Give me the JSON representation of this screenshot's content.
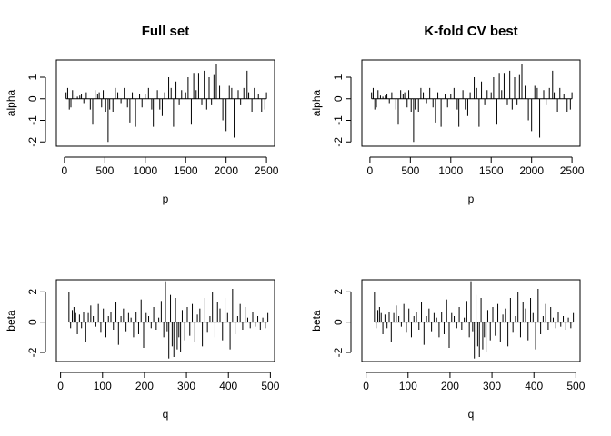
{
  "chart_data": [
    {
      "type": "bar",
      "title": "Full set",
      "xlabel": "p",
      "ylabel": "alpha",
      "xlim": [
        -100,
        2600
      ],
      "ylim": [
        -2.2,
        1.8
      ],
      "xticks": [
        0,
        500,
        1000,
        1500,
        2000,
        2500
      ],
      "yticks": [
        -2,
        -1,
        0,
        1
      ],
      "x": [
        20,
        40,
        60,
        80,
        100,
        130,
        160,
        190,
        210,
        240,
        270,
        320,
        350,
        380,
        410,
        430,
        460,
        480,
        510,
        540,
        560,
        600,
        630,
        660,
        700,
        740,
        780,
        810,
        840,
        880,
        930,
        960,
        1000,
        1040,
        1080,
        1100,
        1150,
        1180,
        1210,
        1240,
        1290,
        1320,
        1350,
        1380,
        1420,
        1450,
        1500,
        1530,
        1570,
        1600,
        1630,
        1660,
        1700,
        1730,
        1760,
        1790,
        1820,
        1850,
        1880,
        1920,
        1960,
        2000,
        2040,
        2070,
        2100,
        2150,
        2180,
        2220,
        2260,
        2280,
        2320,
        2350,
        2400,
        2440,
        2480,
        2500
      ],
      "values": [
        0.3,
        0.5,
        -0.5,
        -0.4,
        0.4,
        0.15,
        0.1,
        0.15,
        0.2,
        -0.2,
        0.3,
        -0.5,
        -1.2,
        0.4,
        0.2,
        0.3,
        -0.4,
        0.4,
        -0.6,
        -2.0,
        -0.5,
        -0.6,
        0.5,
        0.3,
        -0.2,
        0.5,
        -0.4,
        -1.1,
        0.3,
        -1.3,
        0.2,
        -0.4,
        0.2,
        0.5,
        -0.5,
        -1.3,
        0.4,
        -0.5,
        -0.8,
        0.3,
        1.0,
        0.5,
        -1.3,
        0.8,
        -0.3,
        0.4,
        0.3,
        1.0,
        -1.2,
        1.2,
        0.4,
        1.2,
        -0.3,
        1.3,
        -0.5,
        1.0,
        -0.3,
        1.1,
        1.6,
        0.6,
        -1.0,
        -1.5,
        0.6,
        0.5,
        -1.8,
        0.4,
        -0.3,
        0.5,
        1.3,
        0.3,
        -0.6,
        0.5,
        0.2,
        -0.6,
        -0.5,
        0.3
      ]
    },
    {
      "type": "bar",
      "title": "K-fold CV best",
      "xlabel": "p",
      "ylabel": "alpha",
      "xlim": [
        -100,
        2600
      ],
      "ylim": [
        -2.2,
        1.8
      ],
      "xticks": [
        0,
        500,
        1000,
        1500,
        2000,
        2500
      ],
      "yticks": [
        -2,
        -1,
        0,
        1
      ],
      "x": [
        20,
        40,
        60,
        80,
        100,
        130,
        160,
        190,
        210,
        240,
        270,
        320,
        350,
        380,
        410,
        430,
        460,
        480,
        510,
        540,
        560,
        600,
        630,
        660,
        700,
        740,
        780,
        810,
        840,
        880,
        930,
        960,
        1000,
        1040,
        1080,
        1100,
        1150,
        1180,
        1210,
        1240,
        1290,
        1320,
        1350,
        1380,
        1420,
        1450,
        1500,
        1530,
        1570,
        1600,
        1630,
        1660,
        1700,
        1730,
        1760,
        1790,
        1820,
        1850,
        1880,
        1920,
        1960,
        2000,
        2040,
        2070,
        2100,
        2150,
        2180,
        2220,
        2260,
        2280,
        2320,
        2350,
        2400,
        2440,
        2480,
        2500
      ],
      "values": [
        0.3,
        0.5,
        -0.5,
        -0.4,
        0.4,
        0.15,
        0.1,
        0.15,
        0.2,
        -0.2,
        0.3,
        -0.5,
        -1.2,
        0.4,
        0.2,
        0.3,
        -0.4,
        0.4,
        -0.6,
        -2.0,
        -0.5,
        -0.6,
        0.5,
        0.3,
        -0.2,
        0.5,
        -0.4,
        -1.1,
        0.3,
        -1.3,
        0.2,
        -0.4,
        0.2,
        0.5,
        -0.5,
        -1.3,
        0.4,
        -0.5,
        -0.8,
        0.3,
        1.0,
        0.5,
        -1.3,
        0.8,
        -0.3,
        0.4,
        0.3,
        1.0,
        -1.2,
        1.2,
        0.4,
        1.2,
        -0.3,
        1.3,
        -0.5,
        1.0,
        -0.3,
        1.1,
        1.6,
        0.6,
        -1.0,
        -1.5,
        0.6,
        0.5,
        -1.8,
        0.4,
        -0.3,
        0.5,
        1.3,
        0.3,
        -0.6,
        0.5,
        0.2,
        -0.6,
        -0.5,
        0.3
      ]
    },
    {
      "type": "bar",
      "title": "",
      "xlabel": "q",
      "ylabel": "beta",
      "xlim": [
        -10,
        510
      ],
      "ylim": [
        -2.6,
        2.8
      ],
      "xticks": [
        0,
        100,
        200,
        300,
        400,
        500
      ],
      "yticks": [
        -2,
        0,
        2
      ],
      "x": [
        20,
        24,
        28,
        32,
        36,
        40,
        45,
        50,
        55,
        60,
        66,
        72,
        78,
        84,
        90,
        96,
        102,
        108,
        114,
        120,
        126,
        132,
        138,
        144,
        150,
        156,
        162,
        168,
        174,
        180,
        186,
        192,
        198,
        204,
        210,
        216,
        222,
        228,
        234,
        240,
        246,
        250,
        254,
        258,
        262,
        266,
        270,
        274,
        278,
        282,
        286,
        290,
        296,
        302,
        308,
        314,
        320,
        326,
        332,
        338,
        344,
        350,
        356,
        362,
        368,
        374,
        380,
        386,
        392,
        398,
        404,
        410,
        416,
        422,
        428,
        434,
        440,
        446,
        452,
        458,
        464,
        470,
        476,
        482,
        488,
        494
      ],
      "values": [
        2.0,
        -0.4,
        0.8,
        1.0,
        0.6,
        -0.8,
        0.5,
        -0.4,
        0.7,
        -1.3,
        0.6,
        1.1,
        0.4,
        -0.3,
        1.2,
        -0.7,
        0.9,
        -1.0,
        0.4,
        0.7,
        -0.5,
        1.3,
        -1.5,
        0.4,
        0.9,
        -0.6,
        0.6,
        0.3,
        -1.0,
        0.7,
        -0.8,
        1.5,
        -1.7,
        0.6,
        0.4,
        -0.4,
        1.0,
        -0.5,
        0.3,
        1.4,
        -1.0,
        2.7,
        -0.6,
        -2.4,
        1.8,
        -1.6,
        -2.3,
        1.6,
        -1.8,
        -1.0,
        -2.0,
        0.8,
        -1.2,
        1.0,
        -0.9,
        1.2,
        -1.3,
        0.5,
        0.9,
        -1.6,
        1.6,
        -0.7,
        0.4,
        2.0,
        -1.0,
        1.3,
        0.9,
        -1.2,
        1.6,
        0.6,
        -1.8,
        2.2,
        -0.8,
        0.4,
        1.2,
        -0.5,
        1.0,
        0.3,
        -0.4,
        0.7,
        -0.3,
        0.4,
        -0.5,
        0.3,
        -0.4,
        0.6
      ]
    },
    {
      "type": "bar",
      "title": "",
      "xlabel": "q",
      "ylabel": "beta",
      "xlim": [
        -10,
        510
      ],
      "ylim": [
        -2.6,
        2.8
      ],
      "xticks": [
        0,
        100,
        200,
        300,
        400,
        500
      ],
      "yticks": [
        -2,
        0,
        2
      ],
      "x": [
        20,
        24,
        28,
        32,
        36,
        40,
        45,
        50,
        55,
        60,
        66,
        72,
        78,
        84,
        90,
        96,
        102,
        108,
        114,
        120,
        126,
        132,
        138,
        144,
        150,
        156,
        162,
        168,
        174,
        180,
        186,
        192,
        198,
        204,
        210,
        216,
        222,
        228,
        234,
        240,
        246,
        250,
        254,
        258,
        262,
        266,
        270,
        274,
        278,
        282,
        286,
        290,
        296,
        302,
        308,
        314,
        320,
        326,
        332,
        338,
        344,
        350,
        356,
        362,
        368,
        374,
        380,
        386,
        392,
        398,
        404,
        410,
        416,
        422,
        428,
        434,
        440,
        446,
        452,
        458,
        464,
        470,
        476,
        482,
        488,
        494
      ],
      "values": [
        2.0,
        -0.4,
        0.8,
        1.0,
        0.6,
        -0.8,
        0.5,
        -0.4,
        0.7,
        -1.3,
        0.6,
        1.1,
        0.4,
        -0.3,
        1.2,
        -0.7,
        0.9,
        -1.0,
        0.4,
        0.7,
        -0.5,
        1.3,
        -1.5,
        0.4,
        0.9,
        -0.6,
        0.6,
        0.3,
        -1.0,
        0.7,
        -0.8,
        1.5,
        -1.7,
        0.6,
        0.4,
        -0.4,
        1.0,
        -0.5,
        0.3,
        1.4,
        -1.0,
        2.7,
        -0.6,
        -2.4,
        1.8,
        -1.6,
        -2.3,
        1.6,
        -1.8,
        -1.0,
        -2.0,
        0.8,
        -1.2,
        1.0,
        -0.9,
        1.2,
        -1.3,
        0.5,
        0.9,
        -1.6,
        1.6,
        -0.7,
        0.4,
        2.0,
        -1.0,
        1.3,
        0.9,
        -1.2,
        1.6,
        0.6,
        -1.8,
        2.2,
        -0.8,
        0.4,
        1.2,
        -0.5,
        1.0,
        0.3,
        -0.4,
        0.7,
        -0.3,
        0.4,
        -0.5,
        0.3,
        -0.4,
        0.6
      ]
    }
  ]
}
